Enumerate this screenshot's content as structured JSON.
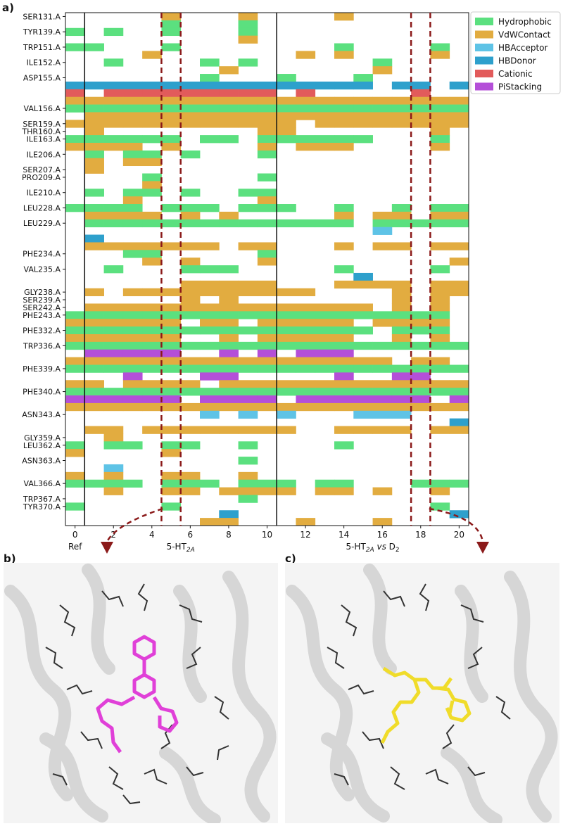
{
  "panel_labels": {
    "a": "a)",
    "b": "b)",
    "c": "c)"
  },
  "chart_data": {
    "type": "heatmap",
    "title": "",
    "xlabel": "",
    "ylabel": "",
    "x_ticks": [
      0,
      2,
      4,
      6,
      8,
      10,
      12,
      14,
      16,
      18,
      20
    ],
    "x_range": [
      -0.5,
      20.5
    ],
    "x_group_labels": [
      "Ref",
      "5-HT2A",
      "5-HT2A vs D2"
    ],
    "group_boundaries_x": [
      0.5,
      10.5
    ],
    "highlight_columns": [
      5,
      18
    ],
    "legend": {
      "position": "top-right",
      "entries": [
        {
          "name": "Hydrophobic",
          "color": "#5be07f"
        },
        {
          "name": "VdWContact",
          "color": "#e2ac40"
        },
        {
          "name": "HBAcceptor",
          "color": "#5ec3e6"
        },
        {
          "name": "HBDonor",
          "color": "#2ea0cc"
        },
        {
          "name": "Cationic",
          "color": "#e25b5b"
        },
        {
          "name": "PiStacking",
          "color": "#b44fd8"
        }
      ]
    },
    "residue_labels": [
      "SER131.A",
      "TYR139.A",
      "TRP151.A",
      "ILE152.A",
      "ASP155.A",
      "VAL156.A",
      "SER159.A",
      "THR160.A",
      "ILE163.A",
      "ILE206.A",
      "SER207.A",
      "PRO209.A",
      "ILE210.A",
      "LEU228.A",
      "LEU229.A",
      "PHE234.A",
      "VAL235.A",
      "GLY238.A",
      "SER239.A",
      "SER242.A",
      "PHE243.A",
      "PHE332.A",
      "TRP336.A",
      "PHE339.A",
      "PHE340.A",
      "ASN343.A",
      "GLY359.A",
      "LEU362.A",
      "ASN363.A",
      "VAL366.A",
      "TRP367.A",
      "TYR370.A"
    ],
    "rows": [
      {
        "residue": "SER131.A",
        "type": "VdWContact",
        "cols": [
          5,
          9,
          14
        ]
      },
      {
        "residue": "",
        "type": "Hydrophobic",
        "cols": [
          5,
          9
        ]
      },
      {
        "residue": "TYR139.A",
        "type": "Hydrophobic",
        "cols": [
          0,
          2,
          5,
          9
        ]
      },
      {
        "residue": "",
        "type": "VdWContact",
        "cols": [
          9
        ]
      },
      {
        "residue": "TRP151.A",
        "type": "Hydrophobic",
        "cols": [
          0,
          1,
          5,
          14,
          19
        ]
      },
      {
        "residue": "",
        "type": "VdWContact",
        "cols": [
          4,
          12,
          14,
          19
        ]
      },
      {
        "residue": "ILE152.A",
        "type": "Hydrophobic",
        "cols": [
          2,
          7,
          9,
          16
        ]
      },
      {
        "residue": "",
        "type": "VdWContact",
        "cols": [
          8,
          16
        ]
      },
      {
        "residue": "ASP155.A",
        "type": "Hydrophobic",
        "cols": [
          7,
          11,
          15
        ]
      },
      {
        "residue": "",
        "type": "HBDonor",
        "cols": [
          0,
          1,
          2,
          3,
          4,
          5,
          6,
          7,
          8,
          9,
          10,
          11,
          12,
          13,
          14,
          15,
          17,
          18,
          20
        ]
      },
      {
        "residue": "",
        "type": "Cationic",
        "cols": [
          0,
          2,
          3,
          4,
          5,
          6,
          7,
          8,
          9,
          10,
          12,
          18
        ]
      },
      {
        "residue": "",
        "type": "VdWContact",
        "cols": [
          0,
          1,
          2,
          3,
          4,
          5,
          6,
          7,
          8,
          9,
          10,
          11,
          12,
          13,
          14,
          15,
          16,
          17,
          18,
          19,
          20
        ]
      },
      {
        "residue": "VAL156.A",
        "type": "Hydrophobic",
        "cols": [
          0,
          1,
          2,
          3,
          4,
          5,
          6,
          7,
          8,
          9,
          10,
          11,
          12,
          13,
          14,
          15,
          16,
          17,
          18,
          19,
          20
        ]
      },
      {
        "residue": "",
        "type": "VdWContact",
        "cols": [
          1,
          2,
          3,
          4,
          5,
          6,
          7,
          8,
          9,
          10,
          11,
          12,
          13,
          14,
          15,
          16,
          17,
          18,
          19,
          20
        ]
      },
      {
        "residue": "SER159.A",
        "type": "VdWContact",
        "cols": [
          0,
          1,
          2,
          3,
          4,
          5,
          6,
          7,
          8,
          9,
          10,
          11,
          13,
          14,
          15,
          16,
          17,
          18,
          19,
          20
        ]
      },
      {
        "residue": "THR160.A",
        "type": "VdWContact",
        "cols": [
          1,
          10,
          11,
          19
        ]
      },
      {
        "residue": "ILE163.A",
        "type": "Hydrophobic",
        "cols": [
          0,
          1,
          2,
          3,
          4,
          5,
          7,
          8,
          10,
          11,
          12,
          13,
          14,
          15,
          19
        ]
      },
      {
        "residue": "",
        "type": "VdWContact",
        "cols": [
          0,
          1,
          2,
          3,
          5,
          10,
          12,
          13,
          14,
          19
        ]
      },
      {
        "residue": "ILE206.A",
        "type": "Hydrophobic",
        "cols": [
          1,
          3,
          4,
          6,
          10
        ]
      },
      {
        "residue": "",
        "type": "VdWContact",
        "cols": [
          1,
          3,
          4
        ]
      },
      {
        "residue": "SER207.A",
        "type": "VdWContact",
        "cols": [
          1
        ]
      },
      {
        "residue": "PRO209.A",
        "type": "Hydrophobic",
        "cols": [
          4,
          10
        ]
      },
      {
        "residue": "",
        "type": "VdWContact",
        "cols": [
          4
        ]
      },
      {
        "residue": "ILE210.A",
        "type": "Hydrophobic",
        "cols": [
          1,
          3,
          4,
          6,
          9,
          10
        ]
      },
      {
        "residue": "",
        "type": "VdWContact",
        "cols": [
          3,
          10
        ]
      },
      {
        "residue": "LEU228.A",
        "type": "Hydrophobic",
        "cols": [
          0,
          1,
          2,
          3,
          5,
          6,
          7,
          9,
          10,
          11,
          14,
          17,
          19,
          20
        ]
      },
      {
        "residue": "",
        "type": "VdWContact",
        "cols": [
          1,
          2,
          3,
          4,
          6,
          8,
          14,
          16,
          17,
          19,
          20
        ]
      },
      {
        "residue": "LEU229.A",
        "type": "Hydrophobic",
        "cols": [
          1,
          2,
          3,
          4,
          5,
          6,
          7,
          8,
          9,
          10,
          11,
          12,
          13,
          14,
          16,
          17,
          18,
          19,
          20
        ]
      },
      {
        "residue": "",
        "type": "HBAcceptor",
        "cols": [
          16
        ]
      },
      {
        "residue": "",
        "type": "HBDonor",
        "cols": [
          1
        ]
      },
      {
        "residue": "",
        "type": "VdWContact",
        "cols": [
          1,
          2,
          3,
          4,
          5,
          6,
          7,
          9,
          10,
          14,
          16,
          17,
          19,
          20
        ]
      },
      {
        "residue": "PHE234.A",
        "type": "Hydrophobic",
        "cols": [
          3,
          4,
          10
        ]
      },
      {
        "residue": "",
        "type": "VdWContact",
        "cols": [
          4,
          6,
          10,
          20
        ]
      },
      {
        "residue": "VAL235.A",
        "type": "Hydrophobic",
        "cols": [
          2,
          6,
          7,
          8,
          14,
          19
        ]
      },
      {
        "residue": "",
        "type": "HBDonor",
        "cols": [
          15
        ]
      },
      {
        "residue": "",
        "type": "VdWContact",
        "cols": [
          6,
          7,
          8,
          9,
          10,
          14,
          15,
          16,
          17,
          19,
          20
        ]
      },
      {
        "residue": "GLY238.A",
        "type": "VdWContact",
        "cols": [
          1,
          3,
          4,
          5,
          6,
          7,
          8,
          9,
          10,
          11,
          12,
          17,
          19,
          20
        ]
      },
      {
        "residue": "SER239.A",
        "type": "VdWContact",
        "cols": [
          6,
          8,
          17,
          19
        ]
      },
      {
        "residue": "SER242.A",
        "type": "VdWContact",
        "cols": [
          1,
          2,
          3,
          4,
          5,
          6,
          7,
          8,
          9,
          10,
          11,
          12,
          13,
          14,
          15,
          17,
          19
        ]
      },
      {
        "residue": "PHE243.A",
        "type": "Hydrophobic",
        "cols": [
          0,
          1,
          2,
          3,
          4,
          5,
          6,
          7,
          8,
          9,
          10,
          11,
          12,
          13,
          14,
          15,
          16,
          17,
          18,
          19
        ]
      },
      {
        "residue": "",
        "type": "VdWContact",
        "cols": [
          0,
          1,
          2,
          3,
          4,
          5,
          7,
          8,
          10,
          11,
          12,
          13,
          14,
          16,
          17,
          18,
          19
        ]
      },
      {
        "residue": "PHE332.A",
        "type": "Hydrophobic",
        "cols": [
          0,
          1,
          2,
          3,
          4,
          5,
          6,
          7,
          8,
          9,
          10,
          11,
          12,
          13,
          14,
          15,
          17,
          18,
          19
        ]
      },
      {
        "residue": "",
        "type": "VdWContact",
        "cols": [
          0,
          1,
          2,
          3,
          4,
          5,
          8,
          10,
          11,
          12,
          13,
          14,
          17,
          19
        ]
      },
      {
        "residue": "TRP336.A",
        "type": "Hydrophobic",
        "cols": [
          0,
          1,
          2,
          3,
          4,
          5,
          6,
          7,
          8,
          9,
          10,
          11,
          12,
          13,
          14,
          15,
          16,
          17,
          18,
          19,
          20
        ]
      },
      {
        "residue": "",
        "type": "PiStacking",
        "cols": [
          1,
          2,
          3,
          4,
          5,
          8,
          10,
          12,
          13,
          14
        ]
      },
      {
        "residue": "",
        "type": "VdWContact",
        "cols": [
          0,
          1,
          2,
          3,
          4,
          5,
          6,
          7,
          8,
          9,
          10,
          11,
          12,
          13,
          14,
          15,
          16,
          18,
          19
        ]
      },
      {
        "residue": "PHE339.A",
        "type": "Hydrophobic",
        "cols": [
          0,
          1,
          2,
          3,
          4,
          5,
          6,
          7,
          8,
          9,
          10,
          11,
          12,
          13,
          14,
          15,
          16,
          17,
          18,
          19,
          20
        ]
      },
      {
        "residue": "",
        "type": "PiStacking",
        "cols": [
          3,
          7,
          8,
          14,
          17,
          18
        ]
      },
      {
        "residue": "",
        "type": "VdWContact",
        "cols": [
          0,
          1,
          3,
          4,
          5,
          6,
          8,
          9,
          10,
          11,
          12,
          13,
          14,
          15,
          16,
          17,
          18,
          19,
          20
        ]
      },
      {
        "residue": "PHE340.A",
        "type": "Hydrophobic",
        "cols": [
          0,
          1,
          2,
          3,
          4,
          5,
          6,
          7,
          8,
          9,
          10,
          11,
          12,
          13,
          14,
          15,
          16,
          17,
          18,
          19,
          20
        ]
      },
      {
        "residue": "",
        "type": "PiStacking",
        "cols": [
          0,
          1,
          2,
          3,
          4,
          5,
          7,
          8,
          9,
          10,
          12,
          13,
          14,
          15,
          16,
          17,
          18,
          20
        ]
      },
      {
        "residue": "",
        "type": "VdWContact",
        "cols": [
          0,
          1,
          2,
          3,
          4,
          5,
          6,
          7,
          8,
          9,
          10,
          11,
          12,
          13,
          14,
          15,
          16,
          17,
          18,
          19,
          20
        ]
      },
      {
        "residue": "ASN343.A",
        "type": "HBAcceptor",
        "cols": [
          7,
          9,
          11,
          15,
          16,
          17
        ]
      },
      {
        "residue": "",
        "type": "HBDonor",
        "cols": [
          20
        ]
      },
      {
        "residue": "",
        "type": "VdWContact",
        "cols": [
          1,
          2,
          4,
          5,
          6,
          7,
          8,
          9,
          10,
          11,
          14,
          15,
          16,
          17,
          19,
          20
        ]
      },
      {
        "residue": "GLY359.A",
        "type": "VdWContact",
        "cols": [
          2
        ]
      },
      {
        "residue": "LEU362.A",
        "type": "Hydrophobic",
        "cols": [
          0,
          2,
          3,
          5,
          6,
          9,
          14
        ]
      },
      {
        "residue": "",
        "type": "VdWContact",
        "cols": [
          0,
          5
        ]
      },
      {
        "residue": "ASN363.A",
        "type": "Hydrophobic",
        "cols": [
          9
        ]
      },
      {
        "residue": "",
        "type": "HBAcceptor",
        "cols": [
          2
        ]
      },
      {
        "residue": "",
        "type": "VdWContact",
        "cols": [
          0,
          2,
          5,
          6,
          9
        ]
      },
      {
        "residue": "VAL366.A",
        "type": "Hydrophobic",
        "cols": [
          0,
          1,
          2,
          3,
          5,
          6,
          7,
          9,
          10,
          11,
          13,
          14,
          18,
          19,
          20
        ]
      },
      {
        "residue": "",
        "type": "VdWContact",
        "cols": [
          2,
          5,
          6,
          8,
          9,
          10,
          11,
          13,
          14,
          16,
          19
        ]
      },
      {
        "residue": "TRP367.A",
        "type": "Hydrophobic",
        "cols": [
          9
        ]
      },
      {
        "residue": "TYR370.A",
        "type": "Hydrophobic",
        "cols": [
          0,
          5,
          19
        ]
      },
      {
        "residue": "",
        "type": "HBDonor",
        "cols": [
          8,
          20
        ]
      },
      {
        "residue": "",
        "type": "VdWContact",
        "cols": [
          7,
          8,
          12,
          16
        ]
      }
    ]
  },
  "colors": {
    "Hydrophobic": "#5be07f",
    "VdWContact": "#e2ac40",
    "HBAcceptor": "#5ec3e6",
    "HBDonor": "#2ea0cc",
    "Cationic": "#e25b5b",
    "PiStacking": "#b44fd8",
    "highlight": "#8b1a1a",
    "ligand_b": "#e040d8",
    "ligand_c": "#f6e53a"
  }
}
